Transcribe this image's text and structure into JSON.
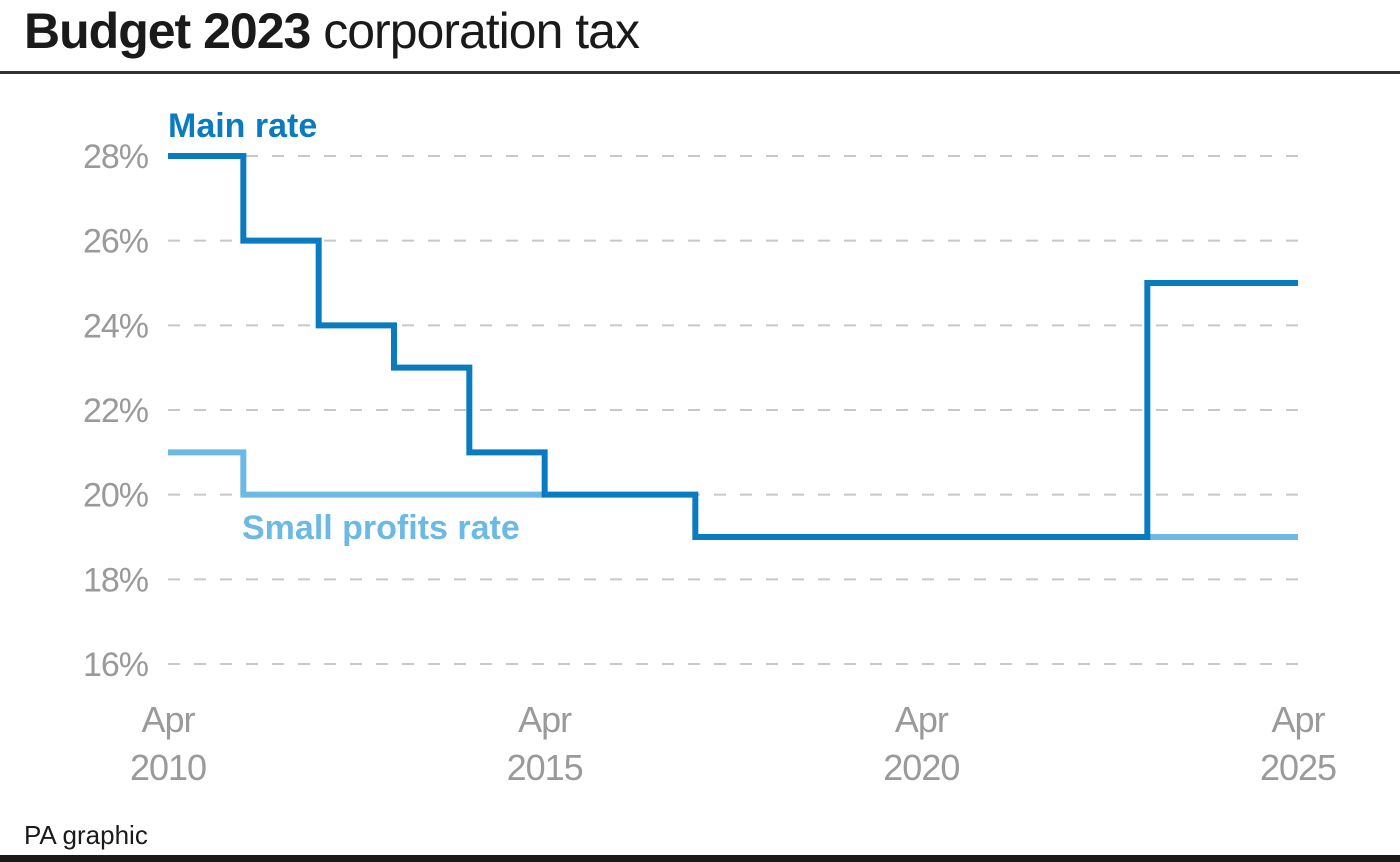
{
  "title": {
    "bold": "Budget 2023",
    "rest": "corporation tax"
  },
  "source": "PA graphic",
  "colors": {
    "main_rate": "#0a7bbf",
    "small_profits_rate": "#6cb9e4",
    "axis_text": "#9a9a9a",
    "grid": "#c8c8c8"
  },
  "chart_data": {
    "type": "line",
    "step": true,
    "title": "",
    "xlabel": "",
    "ylabel": "",
    "xlim": [
      2010,
      2025
    ],
    "ylim": [
      16,
      28
    ],
    "grid": true,
    "x_ticks": [
      {
        "value": 2010,
        "line1": "Apr",
        "line2": "2010"
      },
      {
        "value": 2015,
        "line1": "Apr",
        "line2": "2015"
      },
      {
        "value": 2020,
        "line1": "Apr",
        "line2": "2020"
      },
      {
        "value": 2025,
        "line1": "Apr",
        "line2": "2025"
      }
    ],
    "y_ticks": [
      {
        "value": 28,
        "label": "28%"
      },
      {
        "value": 26,
        "label": "26%"
      },
      {
        "value": 24,
        "label": "24%"
      },
      {
        "value": 22,
        "label": "22%"
      },
      {
        "value": 20,
        "label": "20%"
      },
      {
        "value": 18,
        "label": "18%"
      },
      {
        "value": 16,
        "label": "16%"
      }
    ],
    "series": [
      {
        "name": "Main rate",
        "segments": [
          [
            [
              2010,
              28
            ],
            [
              2011,
              26
            ],
            [
              2012,
              24
            ],
            [
              2013,
              23
            ],
            [
              2014,
              21
            ],
            [
              2015,
              20
            ],
            [
              2017,
              19
            ],
            [
              2023,
              25
            ],
            [
              2025,
              25
            ]
          ]
        ]
      },
      {
        "name": "Small profits rate",
        "segments": [
          [
            [
              2010,
              21
            ],
            [
              2011,
              20
            ],
            [
              2015,
              20
            ]
          ],
          [
            [
              2023,
              19
            ],
            [
              2025,
              19
            ]
          ]
        ]
      }
    ]
  }
}
